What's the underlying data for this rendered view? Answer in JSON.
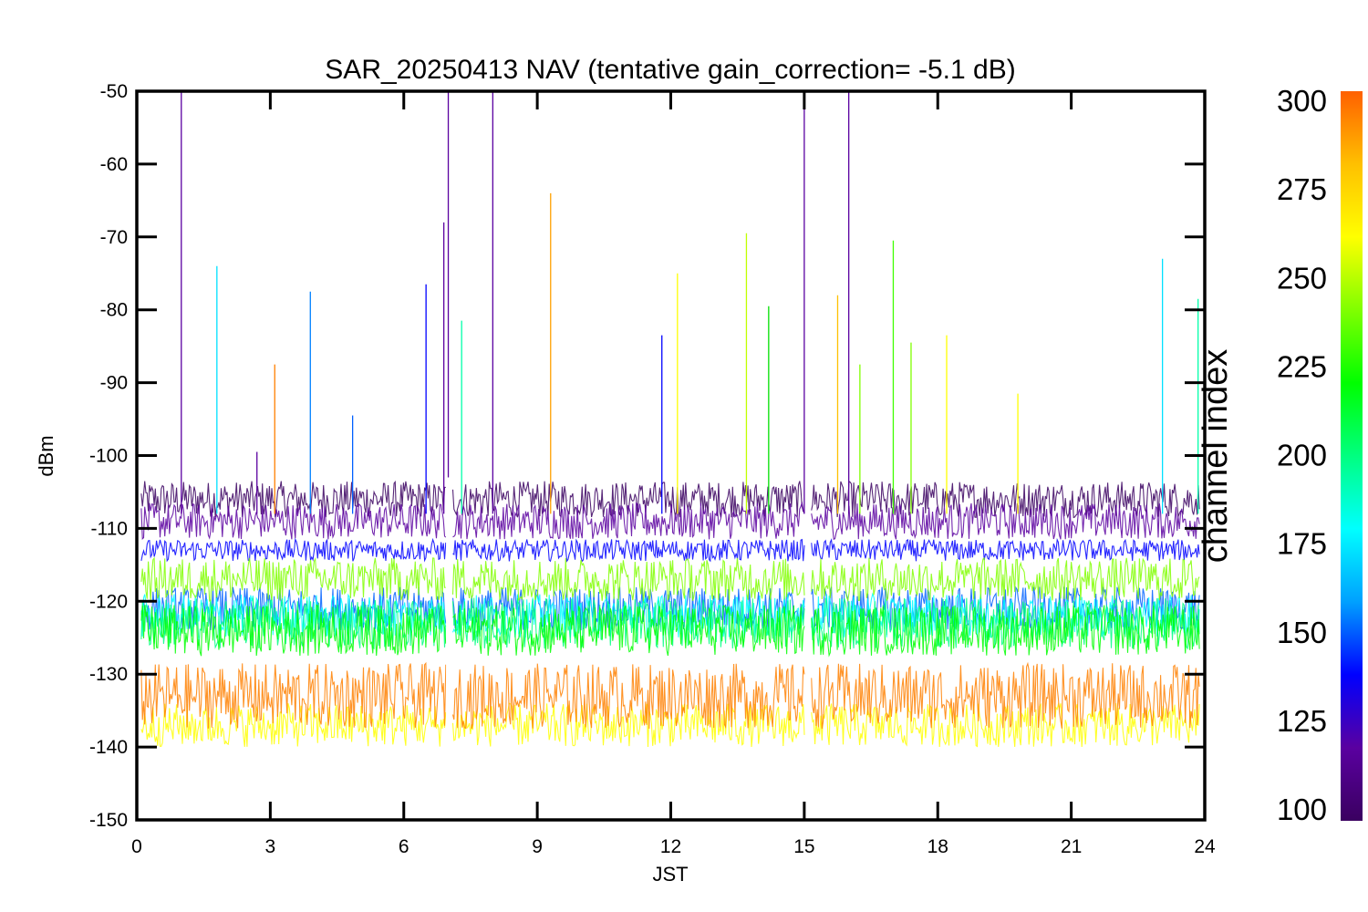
{
  "chart_data": {
    "type": "line",
    "title": "SAR_20250413 NAV (tentative gain_correction= -5.1 dB)",
    "xlabel": "JST",
    "ylabel": "dBm",
    "xlim": [
      0,
      24
    ],
    "ylim": [
      -150,
      -50
    ],
    "x_ticks": [
      "0",
      "3",
      "6",
      "9",
      "12",
      "15",
      "18",
      "21",
      "24"
    ],
    "x_tick_values": [
      0,
      3,
      6,
      9,
      12,
      15,
      18,
      21,
      24
    ],
    "y_ticks": [
      "-50",
      "-60",
      "-70",
      "-80",
      "-90",
      "-100",
      "-110",
      "-120",
      "-130",
      "-140",
      "-150"
    ],
    "y_tick_values": [
      -50,
      -60,
      -70,
      -80,
      -90,
      -100,
      -110,
      -120,
      -130,
      -140,
      -150
    ],
    "data_gaps_hours": [
      [
        6.95,
        7.08
      ],
      [
        15.02,
        15.15
      ]
    ],
    "colorbar": {
      "label": "channel index",
      "range": [
        100,
        300
      ],
      "ticks": [
        "300",
        "275",
        "250",
        "225",
        "200",
        "175",
        "150",
        "125",
        "100"
      ],
      "tick_values": [
        300,
        275,
        250,
        225,
        200,
        175,
        150,
        125,
        100
      ],
      "colormap": [
        "#3a0060",
        "#5a00a0",
        "#0000ff",
        "#00a0ff",
        "#00ffff",
        "#00ff80",
        "#00ff00",
        "#80ff00",
        "#ffff00",
        "#ffc000",
        "#ff6000"
      ]
    },
    "series": [
      {
        "channel": 100,
        "center_dbm": -106,
        "spread_db": 2.5,
        "color": "#3a0060"
      },
      {
        "channel": 115,
        "center_dbm": -109,
        "spread_db": 2.5,
        "color": "#5a00a0"
      },
      {
        "channel": 135,
        "center_dbm": -113,
        "spread_db": 1.5,
        "color": "#0000ff"
      },
      {
        "channel": 155,
        "center_dbm": -121,
        "spread_db": 3.0,
        "color": "#0060ff"
      },
      {
        "channel": 180,
        "center_dbm": -122,
        "spread_db": 3.0,
        "color": "#00ffff"
      },
      {
        "channel": 195,
        "center_dbm": -123,
        "spread_db": 3.5,
        "color": "#00ff80"
      },
      {
        "channel": 220,
        "center_dbm": -124,
        "spread_db": 3.5,
        "color": "#00ff00"
      },
      {
        "channel": 245,
        "center_dbm": -117,
        "spread_db": 3.0,
        "color": "#80ff00"
      },
      {
        "channel": 270,
        "center_dbm": -137,
        "spread_db": 3.0,
        "color": "#ffff00"
      },
      {
        "channel": 295,
        "center_dbm": -133,
        "spread_db": 4.5,
        "color": "#ff8000"
      }
    ],
    "spikes": [
      {
        "x": 1.0,
        "y": -50,
        "color": "#5a00a0"
      },
      {
        "x": 1.8,
        "y": -74,
        "color": "#00e0ff"
      },
      {
        "x": 2.7,
        "y": -99.5,
        "color": "#5a00a0"
      },
      {
        "x": 3.1,
        "y": -87.5,
        "color": "#ff8000"
      },
      {
        "x": 3.9,
        "y": -77.5,
        "color": "#0080ff"
      },
      {
        "x": 4.85,
        "y": -94.5,
        "color": "#0060ff"
      },
      {
        "x": 6.5,
        "y": -76.5,
        "color": "#0000ff"
      },
      {
        "x": 6.9,
        "y": -68,
        "color": "#5a00a0"
      },
      {
        "x": 7.0,
        "y": -50,
        "color": "#5a00a0"
      },
      {
        "x": 7.3,
        "y": -81.5,
        "color": "#00ffaa"
      },
      {
        "x": 8.0,
        "y": -50,
        "color": "#5a00a0"
      },
      {
        "x": 9.3,
        "y": -64,
        "color": "#ffa000"
      },
      {
        "x": 11.8,
        "y": -83.5,
        "color": "#0000ff"
      },
      {
        "x": 12.15,
        "y": -75,
        "color": "#ffff00"
      },
      {
        "x": 13.7,
        "y": -69.5,
        "color": "#c0ff00"
      },
      {
        "x": 14.2,
        "y": -79.5,
        "color": "#00e000"
      },
      {
        "x": 15.0,
        "y": -50,
        "color": "#5a00a0"
      },
      {
        "x": 15.75,
        "y": -78,
        "color": "#ffc000"
      },
      {
        "x": 16.0,
        "y": -50,
        "color": "#5a00a0"
      },
      {
        "x": 16.25,
        "y": -87.5,
        "color": "#80ff00"
      },
      {
        "x": 17.0,
        "y": -70.5,
        "color": "#40ff00"
      },
      {
        "x": 17.4,
        "y": -84.5,
        "color": "#80ff00"
      },
      {
        "x": 18.2,
        "y": -83.5,
        "color": "#ffff00"
      },
      {
        "x": 19.8,
        "y": -91.5,
        "color": "#ffff00"
      },
      {
        "x": 23.05,
        "y": -73,
        "color": "#00e0ff"
      },
      {
        "x": 23.85,
        "y": -78.5,
        "color": "#00ffaa"
      }
    ]
  }
}
